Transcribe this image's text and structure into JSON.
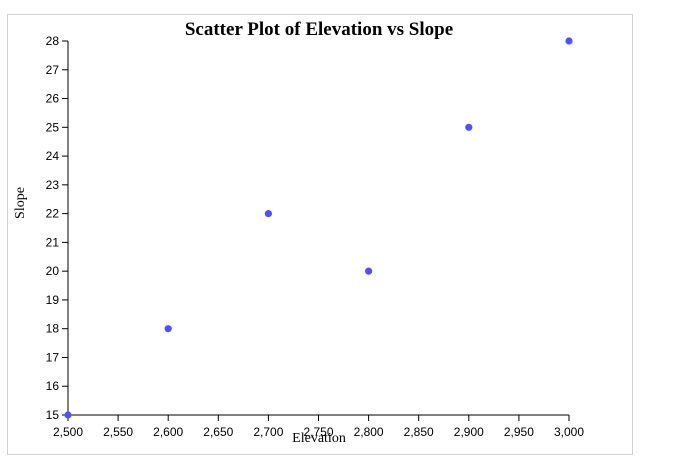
{
  "chart_data": {
    "type": "scatter",
    "title": "Scatter Plot of Elevation vs Slope",
    "xlabel": "Elevation",
    "ylabel": "Slope",
    "xlim": [
      2500,
      3000
    ],
    "ylim": [
      15,
      28
    ],
    "x_ticks": [
      "2,500",
      "2,550",
      "2,600",
      "2,650",
      "2,700",
      "2,750",
      "2,800",
      "2,850",
      "2,900",
      "2,950",
      "3,000"
    ],
    "y_ticks": [
      "15",
      "16",
      "17",
      "18",
      "19",
      "20",
      "21",
      "22",
      "23",
      "24",
      "25",
      "26",
      "27",
      "28"
    ],
    "points": [
      {
        "x": 2500,
        "y": 15
      },
      {
        "x": 2600,
        "y": 18
      },
      {
        "x": 2700,
        "y": 22
      },
      {
        "x": 2800,
        "y": 20
      },
      {
        "x": 2900,
        "y": 25
      },
      {
        "x": 3000,
        "y": 28
      }
    ],
    "point_color": "#5050ff",
    "grid": false,
    "legend": "none"
  }
}
